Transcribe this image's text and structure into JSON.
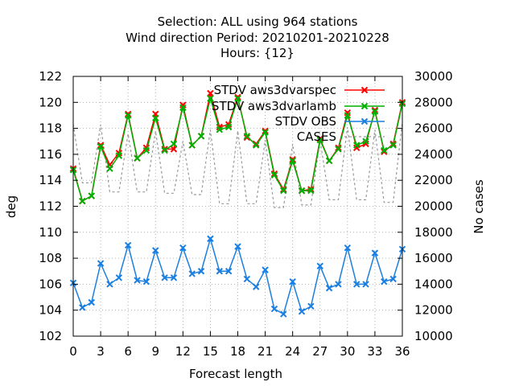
{
  "chart_data": {
    "type": "line",
    "title_lines": [
      "Selection: ALL using   964 stations",
      "Wind direction   Period: 20210201-20210228",
      "Hours: {12}"
    ],
    "xlabel": "Forecast length",
    "ylabel": "deg",
    "y2label": "No cases",
    "xlim": [
      0,
      36
    ],
    "ylim": [
      102,
      122
    ],
    "y2lim": [
      10000,
      30000
    ],
    "xticks": [
      0,
      3,
      6,
      9,
      12,
      15,
      18,
      21,
      24,
      27,
      30,
      33,
      36
    ],
    "yticks": [
      102,
      104,
      106,
      108,
      110,
      112,
      114,
      116,
      118,
      120,
      122
    ],
    "y2ticks": [
      10000,
      12000,
      14000,
      16000,
      18000,
      20000,
      22000,
      24000,
      26000,
      28000,
      30000
    ],
    "grid": true,
    "legend_position": "top-right",
    "x": [
      0,
      1,
      2,
      3,
      4,
      5,
      6,
      7,
      8,
      9,
      10,
      11,
      12,
      13,
      14,
      15,
      16,
      17,
      18,
      19,
      20,
      21,
      22,
      23,
      24,
      25,
      26,
      27,
      28,
      29,
      30,
      31,
      32,
      33,
      34,
      35,
      36
    ],
    "series": [
      {
        "name": "STDV aws3dvarspec",
        "color": "#ff0000",
        "axis": "y1",
        "marker": "x",
        "values": [
          114.9,
          112.4,
          112.8,
          116.7,
          115.2,
          116.1,
          119.1,
          115.7,
          116.5,
          119.1,
          116.4,
          116.4,
          119.8,
          116.7,
          117.4,
          120.7,
          118.1,
          118.3,
          120.4,
          117.3,
          116.8,
          117.8,
          114.5,
          113.3,
          115.6,
          113.2,
          113.3,
          117.2,
          115.5,
          116.5,
          119.2,
          116.5,
          116.8,
          119.4,
          116.2,
          116.8,
          120.0
        ]
      },
      {
        "name": "STDV aws3dvarlamb",
        "color": "#00b000",
        "axis": "y1",
        "marker": "x",
        "values": [
          114.8,
          112.4,
          112.8,
          116.6,
          114.9,
          115.9,
          119.0,
          115.7,
          116.3,
          118.8,
          116.3,
          116.8,
          119.6,
          116.7,
          117.4,
          120.3,
          117.9,
          118.1,
          120.3,
          117.4,
          116.7,
          117.7,
          114.4,
          113.2,
          115.5,
          113.2,
          113.2,
          117.1,
          115.5,
          116.4,
          119.0,
          116.7,
          117.0,
          119.3,
          116.3,
          116.7,
          119.9
        ]
      },
      {
        "name": "STDV OBS",
        "color": "#1a7fe0",
        "axis": "y1",
        "marker": "x",
        "values": [
          106.1,
          104.2,
          104.6,
          107.6,
          106.0,
          106.5,
          109.0,
          106.3,
          106.2,
          108.6,
          106.5,
          106.5,
          108.8,
          106.8,
          107.0,
          109.5,
          107.0,
          107.0,
          108.9,
          106.4,
          105.8,
          107.1,
          104.1,
          103.7,
          106.2,
          103.9,
          104.3,
          107.4,
          105.7,
          106.0,
          108.8,
          106.0,
          106.0,
          108.4,
          106.2,
          106.4,
          108.7
        ]
      },
      {
        "name": "CASES",
        "color": "#999999",
        "axis": "y2",
        "marker": "none",
        "values": [
          26300,
          21800,
          21800,
          26300,
          21100,
          21100,
          25600,
          21100,
          21100,
          25800,
          21000,
          21000,
          25000,
          20900,
          20900,
          25900,
          20200,
          20200,
          25800,
          20200,
          20200,
          25100,
          19900,
          19900,
          24800,
          20100,
          20100,
          25100,
          20500,
          20500,
          26100,
          20500,
          20500,
          25900,
          20300,
          20300,
          26500
        ]
      }
    ]
  }
}
